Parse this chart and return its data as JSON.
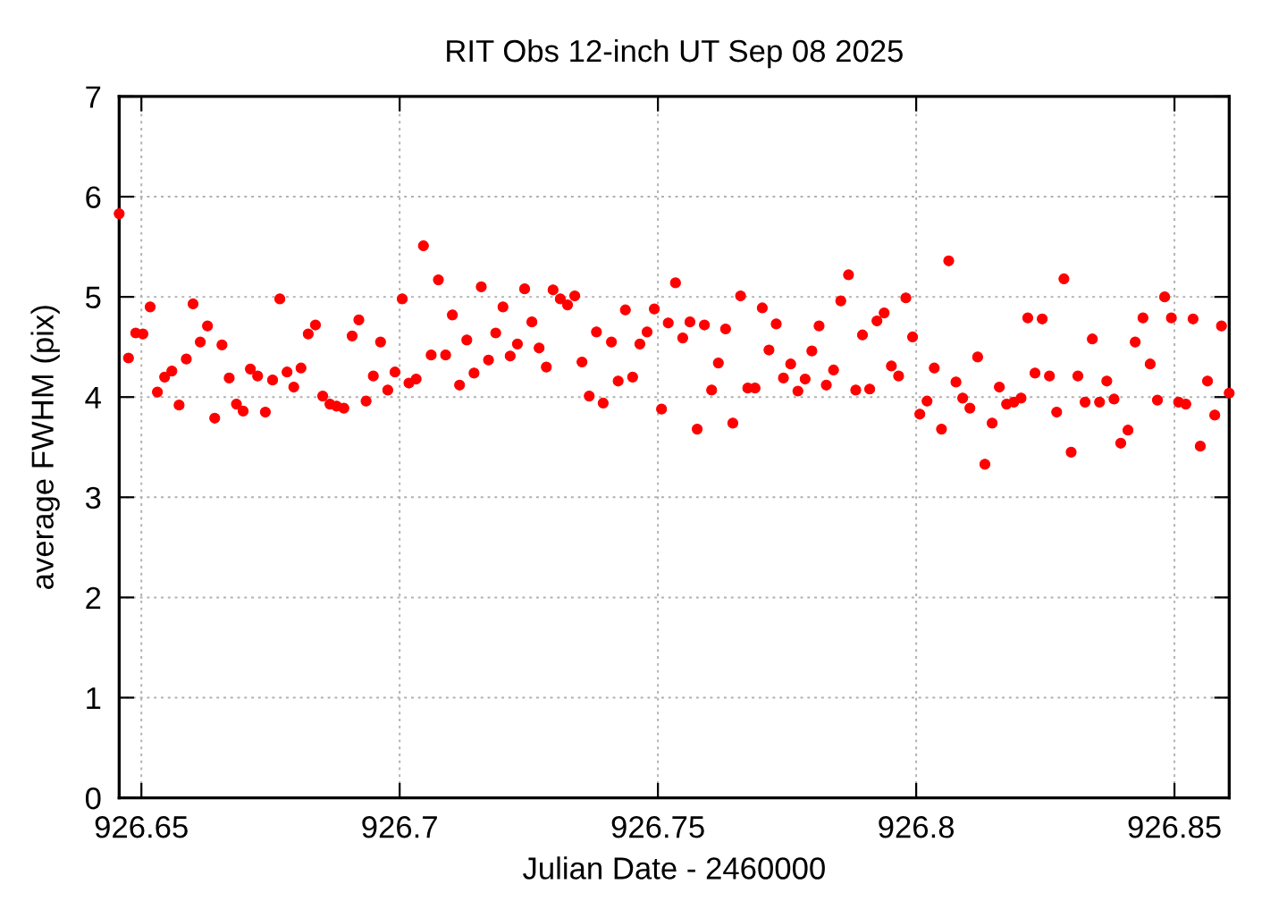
{
  "chart_data": {
    "type": "scatter",
    "title": "RIT Obs 12-inch UT Sep 08 2025",
    "xlabel": "Julian Date - 2460000",
    "ylabel": "average FWHM (pix)",
    "xlim": [
      926.6457,
      926.8606
    ],
    "ylim": [
      0,
      7
    ],
    "xticks": [
      926.65,
      926.7,
      926.75,
      926.8,
      926.85
    ],
    "yticks": [
      0,
      1,
      2,
      3,
      4,
      5,
      6,
      7
    ],
    "grid": true,
    "marker": "circle",
    "series": [
      {
        "color": "#ff0000",
        "x": [
          926.6457,
          926.6475,
          926.6489,
          926.6503,
          926.6517,
          926.6531,
          926.6545,
          926.6559,
          926.6573,
          926.6587,
          926.66,
          926.6614,
          926.6628,
          926.6642,
          926.6656,
          926.667,
          926.6684,
          926.6697,
          926.6711,
          926.6725,
          926.674,
          926.6754,
          926.6768,
          926.6782,
          926.6795,
          926.6809,
          926.6823,
          926.6837,
          926.6851,
          926.6865,
          926.6878,
          926.6892,
          926.6908,
          926.6921,
          926.6935,
          926.6949,
          926.6963,
          926.6977,
          926.6991,
          926.7005,
          926.7018,
          926.7032,
          926.7046,
          926.7061,
          926.7075,
          926.7089,
          926.7102,
          926.7116,
          926.713,
          926.7144,
          926.7158,
          926.7172,
          926.7186,
          926.72,
          926.7214,
          926.7228,
          926.7242,
          926.7256,
          926.727,
          926.7284,
          926.7297,
          926.7311,
          926.7325,
          926.7339,
          926.7353,
          926.7367,
          926.7381,
          926.7394,
          926.741,
          926.7423,
          926.7437,
          926.7451,
          926.7465,
          926.7479,
          926.7493,
          926.7507,
          926.752,
          926.7534,
          926.7548,
          926.7562,
          926.7576,
          926.759,
          926.7604,
          926.7617,
          926.7631,
          926.7645,
          926.766,
          926.7674,
          926.7688,
          926.7702,
          926.7715,
          926.7729,
          926.7743,
          926.7757,
          926.7771,
          926.7785,
          926.7798,
          926.7812,
          926.7826,
          926.784,
          926.7854,
          926.7869,
          926.7883,
          926.7896,
          926.791,
          926.7924,
          926.7938,
          926.7952,
          926.7966,
          926.798,
          926.7993,
          926.8007,
          926.8021,
          926.8035,
          926.8049,
          926.8063,
          926.8077,
          926.809,
          926.8104,
          926.8119,
          926.8133,
          926.8147,
          926.8161,
          926.8175,
          926.8189,
          926.8203,
          926.8216,
          926.823,
          926.8244,
          926.8258,
          926.8272,
          926.8286,
          926.83,
          926.8313,
          926.8327,
          926.8341,
          926.8355,
          926.8369,
          926.8383,
          926.8396,
          926.841,
          926.8424,
          926.8439,
          926.8453,
          926.8467,
          926.8481,
          926.8494,
          926.8508,
          926.8522,
          926.8536,
          926.855,
          926.8564,
          926.8578,
          926.8591,
          926.8606
        ],
        "values": [
          5.83,
          4.39,
          4.64,
          4.63,
          4.9,
          4.05,
          4.2,
          4.26,
          3.92,
          4.38,
          4.93,
          4.55,
          4.71,
          3.79,
          4.52,
          4.19,
          3.93,
          3.86,
          4.28,
          4.21,
          3.85,
          4.17,
          4.98,
          4.25,
          4.1,
          4.29,
          4.63,
          4.72,
          4.01,
          3.93,
          3.91,
          3.89,
          4.61,
          4.77,
          3.96,
          4.21,
          4.55,
          4.07,
          4.25,
          4.98,
          4.14,
          4.18,
          5.51,
          4.42,
          5.17,
          4.42,
          4.82,
          4.12,
          4.57,
          4.24,
          5.1,
          4.37,
          4.64,
          4.9,
          4.41,
          4.53,
          5.08,
          4.75,
          4.49,
          4.3,
          5.07,
          4.98,
          4.92,
          5.01,
          4.35,
          4.01,
          4.65,
          3.94,
          4.55,
          4.16,
          4.87,
          4.2,
          4.53,
          4.65,
          4.88,
          3.88,
          4.74,
          5.14,
          4.59,
          4.75,
          3.68,
          4.72,
          4.07,
          4.34,
          4.68,
          3.74,
          5.01,
          4.09,
          4.09,
          4.89,
          4.47,
          4.73,
          4.19,
          4.33,
          4.06,
          4.18,
          4.46,
          4.71,
          4.12,
          4.27,
          4.96,
          5.22,
          4.07,
          4.62,
          4.08,
          4.76,
          4.84,
          4.31,
          4.21,
          4.99,
          4.6,
          3.83,
          3.96,
          4.29,
          3.68,
          5.36,
          4.15,
          3.99,
          3.89,
          4.4,
          3.33,
          3.74,
          4.1,
          3.93,
          3.95,
          3.99,
          4.79,
          4.24,
          4.78,
          4.21,
          3.85,
          5.18,
          3.45,
          4.21,
          3.95,
          4.58,
          3.95,
          4.16,
          3.98,
          3.54,
          3.67,
          4.55,
          4.79,
          4.33,
          3.97,
          5.0,
          4.79,
          3.95,
          3.93,
          4.78,
          3.51,
          4.16,
          3.82,
          4.71,
          4.04
        ]
      }
    ]
  }
}
